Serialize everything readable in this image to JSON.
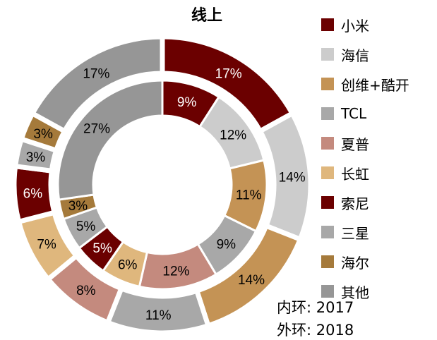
{
  "chart_data": {
    "type": "donut",
    "title": "线上",
    "categories": [
      "小米",
      "海信",
      "创维+酷开",
      "TCL",
      "夏普",
      "长虹",
      "索尼",
      "三星",
      "海尔",
      "其他"
    ],
    "colors": [
      "#6b0000",
      "#cccccc",
      "#c49355",
      "#a8a8a8",
      "#c48a7e",
      "#dfb77d",
      "#6b0000",
      "#a8a8a8",
      "#a57a3b",
      "#969696"
    ],
    "series": [
      {
        "name": "2017",
        "values": [
          9,
          12,
          11,
          9,
          12,
          6,
          5,
          5,
          3,
          27
        ]
      },
      {
        "name": "2018",
        "values": [
          17,
          14,
          14,
          11,
          8,
          7,
          6,
          3,
          3,
          17
        ]
      }
    ],
    "value_suffix": "%",
    "legend_position": "right"
  },
  "notes": {
    "inner_label": "内环:",
    "inner_value": "2017",
    "outer_label": "外环:",
    "outer_value": "2018"
  }
}
